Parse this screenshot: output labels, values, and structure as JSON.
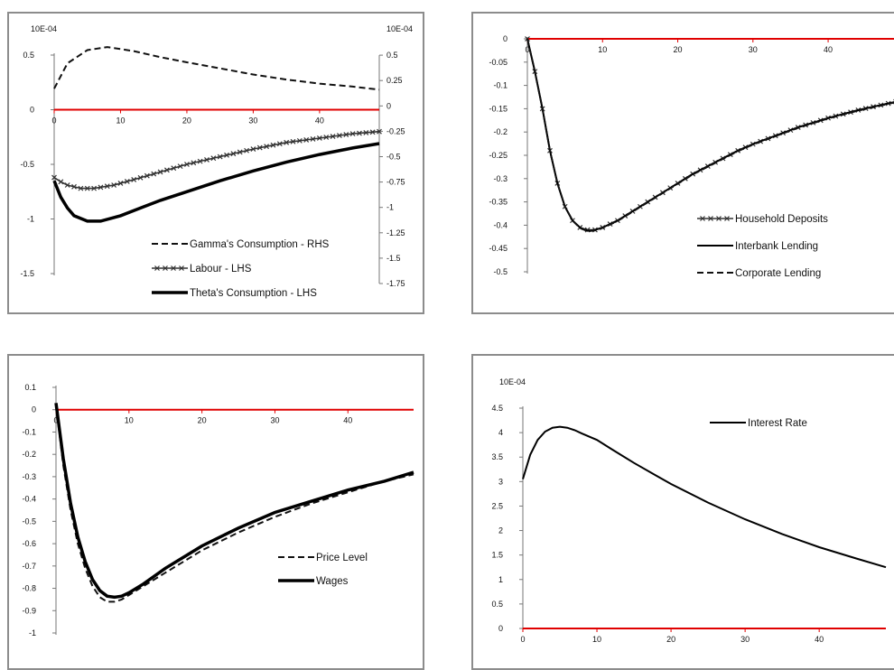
{
  "chart_data": [
    {
      "type": "line",
      "left_axis_title": "10E-04",
      "right_axis_title": "10E-04",
      "x_ticks": [
        0,
        10,
        20,
        30,
        40
      ],
      "xlim": [
        0,
        49
      ],
      "ylim_left": [
        -1.5,
        0.5
      ],
      "y_ticks_left": [
        0.5,
        0,
        -0.5,
        -1,
        -1.5
      ],
      "y_tick_labels_left": [
        "0.5",
        "0",
        "-0.5",
        "-1",
        "-1.5"
      ],
      "ylim_right": [
        -1.75,
        0.75
      ],
      "y_ticks_right": [
        0.5,
        0.25,
        0,
        -0.25,
        -0.5,
        -0.75,
        -1,
        -1.25,
        -1.5,
        -1.75
      ],
      "y_tick_labels_right": [
        "0.5",
        "0.25",
        "0",
        "-0.25",
        "-0.5",
        "-0.75",
        "-1",
        "-1.25",
        "-1.5",
        "-1.75"
      ],
      "zero_line_color": "#e00000",
      "legend_position": "bottom-right",
      "series": [
        {
          "name": "Gamma's Consumption - RHS",
          "axis": "right",
          "style": "dashed",
          "x": [
            0,
            2,
            5,
            8,
            12,
            16,
            20,
            25,
            30,
            35,
            40,
            45,
            49
          ],
          "values": [
            0.17,
            0.42,
            0.55,
            0.58,
            0.54,
            0.48,
            0.43,
            0.37,
            0.31,
            0.26,
            0.22,
            0.19,
            0.16
          ]
        },
        {
          "name": "Labour - LHS",
          "axis": "left",
          "style": "cross",
          "x": [
            0,
            1,
            2,
            4,
            6,
            9,
            12,
            16,
            20,
            25,
            30,
            35,
            40,
            45,
            49
          ],
          "values": [
            -0.62,
            -0.66,
            -0.69,
            -0.72,
            -0.72,
            -0.69,
            -0.64,
            -0.57,
            -0.5,
            -0.43,
            -0.36,
            -0.3,
            -0.26,
            -0.22,
            -0.2
          ]
        },
        {
          "name": "Theta's Consumption - LHS",
          "axis": "left",
          "style": "thick",
          "x": [
            0,
            1,
            2,
            3,
            5,
            7,
            10,
            13,
            16,
            20,
            25,
            30,
            35,
            40,
            45,
            49
          ],
          "values": [
            -0.65,
            -0.8,
            -0.9,
            -0.97,
            -1.02,
            -1.02,
            -0.97,
            -0.9,
            -0.83,
            -0.75,
            -0.65,
            -0.56,
            -0.48,
            -0.41,
            -0.35,
            -0.31
          ]
        }
      ]
    },
    {
      "type": "line",
      "x_ticks": [
        0,
        10,
        20,
        30,
        40
      ],
      "xlim": [
        0,
        49
      ],
      "ylim": [
        -0.5,
        0
      ],
      "y_ticks": [
        0,
        -0.05,
        -0.1,
        -0.15,
        -0.2,
        -0.25,
        -0.3,
        -0.35,
        -0.4,
        -0.45,
        -0.5
      ],
      "y_tick_labels": [
        "0",
        "-0.05",
        "-0.1",
        "-0.15",
        "-0.2",
        "-0.25",
        "-0.3",
        "-0.35",
        "-0.4",
        "-0.45",
        "-0.5"
      ],
      "zero_line_color": "#e00000",
      "legend_position": "bottom-right",
      "series": [
        {
          "name": "Household Deposits",
          "style": "cross",
          "x": [
            0,
            1,
            2,
            3,
            4,
            5,
            6,
            7,
            8,
            9,
            10,
            12,
            14,
            16,
            18,
            20,
            22,
            25,
            28,
            30,
            33,
            36,
            40,
            44,
            49
          ],
          "values": [
            0,
            -0.07,
            -0.15,
            -0.24,
            -0.31,
            -0.36,
            -0.39,
            -0.405,
            -0.41,
            -0.41,
            -0.405,
            -0.39,
            -0.37,
            -0.35,
            -0.33,
            -0.31,
            -0.29,
            -0.265,
            -0.24,
            -0.226,
            -0.208,
            -0.19,
            -0.17,
            -0.153,
            -0.135
          ]
        },
        {
          "name": "Interbank Lending",
          "style": "solid",
          "x": [
            0,
            1,
            2,
            3,
            4,
            5,
            6,
            7,
            8,
            9,
            10,
            12,
            14,
            16,
            18,
            20,
            22,
            25,
            28,
            30,
            33,
            36,
            40,
            44,
            49
          ],
          "values": [
            0,
            -0.07,
            -0.15,
            -0.24,
            -0.31,
            -0.36,
            -0.39,
            -0.405,
            -0.412,
            -0.41,
            -0.405,
            -0.39,
            -0.37,
            -0.35,
            -0.33,
            -0.31,
            -0.29,
            -0.265,
            -0.24,
            -0.226,
            -0.208,
            -0.19,
            -0.17,
            -0.153,
            -0.135
          ]
        },
        {
          "name": "Corporate Lending",
          "style": "dashed",
          "x": [
            0,
            1,
            2,
            3,
            4,
            5,
            6,
            7,
            8,
            9,
            10,
            12,
            14,
            16,
            18,
            20,
            22,
            25,
            28,
            30,
            33,
            36,
            40,
            44,
            49
          ],
          "values": [
            0,
            -0.07,
            -0.15,
            -0.24,
            -0.31,
            -0.36,
            -0.39,
            -0.406,
            -0.413,
            -0.411,
            -0.406,
            -0.391,
            -0.371,
            -0.351,
            -0.331,
            -0.311,
            -0.291,
            -0.266,
            -0.241,
            -0.227,
            -0.209,
            -0.191,
            -0.171,
            -0.154,
            -0.136
          ]
        }
      ]
    },
    {
      "type": "line",
      "x_ticks": [
        0,
        10,
        20,
        30,
        40
      ],
      "xlim": [
        0,
        49
      ],
      "ylim": [
        -1,
        0.1
      ],
      "y_ticks": [
        0.1,
        0,
        -0.1,
        -0.2,
        -0.3,
        -0.4,
        -0.5,
        -0.6,
        -0.7,
        -0.8,
        -0.9,
        -1
      ],
      "y_tick_labels": [
        "0.1",
        "0",
        "-0.1",
        "-0.2",
        "-0.3",
        "-0.4",
        "-0.5",
        "-0.6",
        "-0.7",
        "-0.8",
        "-0.9",
        "-1"
      ],
      "zero_line_color": "#e00000",
      "legend_position": "bottom-right",
      "series": [
        {
          "name": "Price Level",
          "style": "dashed",
          "x": [
            0,
            1,
            2,
            3,
            4,
            5,
            6,
            7,
            8,
            9,
            10,
            12,
            15,
            18,
            20,
            25,
            30,
            35,
            40,
            45,
            49
          ],
          "values": [
            0.02,
            -0.25,
            -0.45,
            -0.6,
            -0.71,
            -0.79,
            -0.84,
            -0.86,
            -0.86,
            -0.85,
            -0.83,
            -0.79,
            -0.73,
            -0.67,
            -0.63,
            -0.55,
            -0.48,
            -0.42,
            -0.37,
            -0.32,
            -0.29
          ]
        },
        {
          "name": "Wages",
          "style": "thick",
          "x": [
            0,
            1,
            2,
            3,
            4,
            5,
            6,
            7,
            8,
            9,
            10,
            12,
            15,
            18,
            20,
            25,
            30,
            35,
            40,
            45,
            49
          ],
          "values": [
            0.03,
            -0.22,
            -0.42,
            -0.57,
            -0.68,
            -0.76,
            -0.81,
            -0.835,
            -0.84,
            -0.835,
            -0.82,
            -0.78,
            -0.71,
            -0.65,
            -0.61,
            -0.53,
            -0.46,
            -0.41,
            -0.36,
            -0.32,
            -0.28
          ]
        }
      ]
    },
    {
      "type": "line",
      "left_axis_title": "10E-04",
      "x_ticks": [
        0,
        10,
        20,
        30,
        40
      ],
      "xlim": [
        0,
        49
      ],
      "ylim": [
        0,
        4.5
      ],
      "y_ticks": [
        4.5,
        4,
        3.5,
        3,
        2.5,
        2,
        1.5,
        1,
        0.5,
        0
      ],
      "y_tick_labels": [
        "4.5",
        "4",
        "3.5",
        "3",
        "2.5",
        "2",
        "1.5",
        "1",
        "0.5",
        "0"
      ],
      "zero_line_color": "#e00000",
      "legend_position": "top-right",
      "series": [
        {
          "name": "Interest Rate",
          "style": "solid",
          "x": [
            0,
            1,
            2,
            3,
            4,
            5,
            6,
            7,
            8,
            10,
            12,
            15,
            18,
            20,
            25,
            30,
            35,
            40,
            45,
            49
          ],
          "values": [
            3.05,
            3.55,
            3.85,
            4.02,
            4.1,
            4.12,
            4.1,
            4.05,
            3.98,
            3.85,
            3.66,
            3.38,
            3.12,
            2.95,
            2.57,
            2.23,
            1.93,
            1.66,
            1.43,
            1.25
          ]
        }
      ]
    }
  ]
}
